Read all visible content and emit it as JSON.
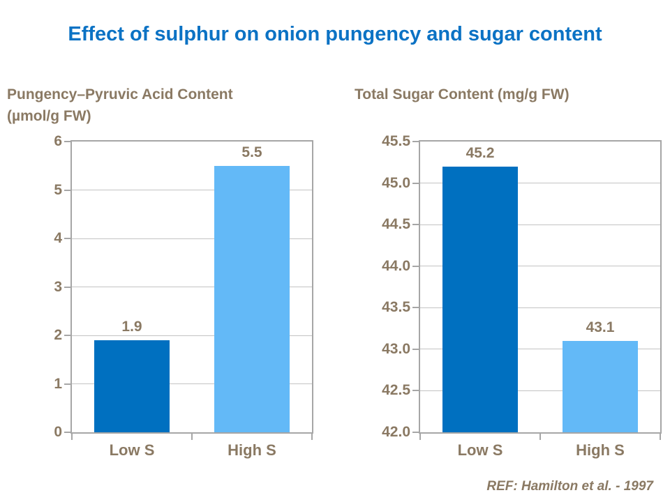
{
  "title": "Effect of sulphur on onion pungency and sugar content",
  "footer": "REF: Hamilton et al. - 1997",
  "colors": {
    "title_blue": "#0b72c4",
    "label_brown": "#8a7963",
    "bar_dark_blue": "#0070c0",
    "bar_light_blue": "#63b9f7",
    "plot_border": "#a6a6a6",
    "gridline": "#c3c3c3"
  },
  "chart_data": [
    {
      "type": "bar",
      "title": "Pungency–Pyruvic Acid Content",
      "title_line2": "(µmol/g FW)",
      "categories": [
        "Low S",
        "High S"
      ],
      "values": [
        1.9,
        5.5
      ],
      "value_labels": [
        "1.9",
        "5.5"
      ],
      "bar_colors": [
        "#0070c0",
        "#63b9f7"
      ],
      "ylim": [
        0,
        6
      ],
      "ytick_step": 1,
      "ytick_labels": [
        "0",
        "1",
        "2",
        "3",
        "4",
        "5",
        "6"
      ],
      "grid": true,
      "legend": "none",
      "xlabel": "",
      "ylabel": ""
    },
    {
      "type": "bar",
      "title": "Total Sugar Content (mg/g FW)",
      "title_line2": "",
      "categories": [
        "Low S",
        "High S"
      ],
      "values": [
        45.2,
        43.1
      ],
      "value_labels": [
        "45.2",
        "43.1"
      ],
      "bar_colors": [
        "#0070c0",
        "#63b9f7"
      ],
      "ylim": [
        42.0,
        45.5
      ],
      "ytick_step": 0.5,
      "ytick_labels": [
        "42.0",
        "42.5",
        "43.0",
        "43.5",
        "44.0",
        "44.5",
        "45.0",
        "45.5"
      ],
      "grid": true,
      "legend": "none",
      "xlabel": "",
      "ylabel": ""
    }
  ]
}
